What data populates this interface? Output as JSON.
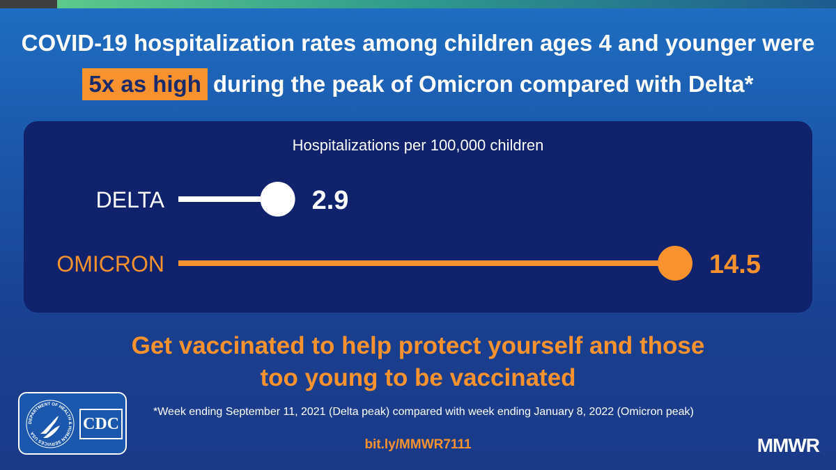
{
  "headline": {
    "line1": "COVID-19 hospitalization rates among children ages 4 and younger were",
    "highlight": "5x as high",
    "line2_rest": "during the peak of Omicron compared with Delta*"
  },
  "chart_data": {
    "type": "bar",
    "subtitle": "Hospitalizations per 100,000 children",
    "categories": [
      "DELTA",
      "OMICRON"
    ],
    "values": [
      2.9,
      14.5
    ],
    "value_labels": [
      "2.9",
      "14.5"
    ],
    "colors": [
      "#ffffff",
      "#f7922f"
    ],
    "xlim": [
      0,
      14.5
    ],
    "orientation": "horizontal",
    "style": "lollipop"
  },
  "cta": {
    "line1": "Get vaccinated to help protect yourself and those",
    "line2": "too young to be vaccinated"
  },
  "footnote": "*Week ending September 11, 2021 (Delta peak) compared with week ending January 8, 2022 (Omicron peak)",
  "link": "bit.ly/MMWR7111",
  "logo": {
    "cdc_text": "CDC",
    "hhs_ring_text": "DEPARTMENT OF HEALTH & HUMAN SERVICES USA"
  },
  "brand": "MMWR",
  "colors": {
    "accent_orange": "#f7922f",
    "panel_navy": "#0f226b",
    "background_blue": "#1b55a8"
  }
}
